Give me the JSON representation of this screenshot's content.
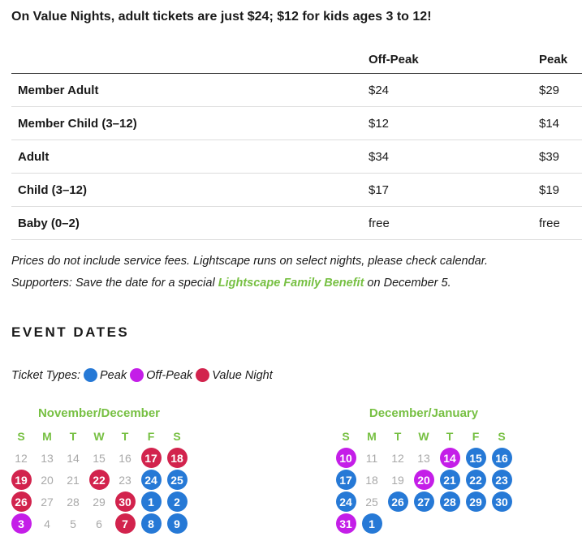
{
  "promo": "On Value Nights, adult tickets are just $24; $12 for kids ages 3 to 12!",
  "pricing": {
    "columns": [
      "",
      "Off-Peak",
      "Peak"
    ],
    "rows": [
      {
        "label": "Member Adult",
        "offpeak": "$24",
        "peak": "$29"
      },
      {
        "label": "Member Child (3–12)",
        "offpeak": "$12",
        "peak": "$14"
      },
      {
        "label": "Adult",
        "offpeak": "$34",
        "peak": "$39"
      },
      {
        "label": "Child (3–12)",
        "offpeak": "$17",
        "peak": "$19"
      },
      {
        "label": "Baby (0–2)",
        "offpeak": "free",
        "peak": "free"
      }
    ]
  },
  "notes": {
    "line1": "Prices do not include service fees. Lightscape runs on select nights, please check calendar.",
    "line2_prefix": "Supporters: Save the date for a special ",
    "line2_link": "Lightscape Family Benefit",
    "line2_suffix": " on December 5."
  },
  "event_dates_title": "EVENT DATES",
  "ticket_types": {
    "label": "Ticket Types:",
    "items": [
      {
        "name": "Peak",
        "color": "#2679d6"
      },
      {
        "name": "Off-Peak",
        "color": "#c41ee8"
      },
      {
        "name": "Value Night",
        "color": "#d2234d"
      }
    ]
  },
  "calendars": [
    {
      "title": "November/December",
      "weekdays": [
        "S",
        "M",
        "T",
        "W",
        "T",
        "F",
        "S"
      ],
      "weeks": [
        [
          {
            "d": "12",
            "t": "none"
          },
          {
            "d": "13",
            "t": "none"
          },
          {
            "d": "14",
            "t": "none"
          },
          {
            "d": "15",
            "t": "none"
          },
          {
            "d": "16",
            "t": "none"
          },
          {
            "d": "17",
            "t": "value"
          },
          {
            "d": "18",
            "t": "value"
          }
        ],
        [
          {
            "d": "19",
            "t": "value"
          },
          {
            "d": "20",
            "t": "none"
          },
          {
            "d": "21",
            "t": "none"
          },
          {
            "d": "22",
            "t": "value"
          },
          {
            "d": "23",
            "t": "none"
          },
          {
            "d": "24",
            "t": "peak"
          },
          {
            "d": "25",
            "t": "peak"
          }
        ],
        [
          {
            "d": "26",
            "t": "value"
          },
          {
            "d": "27",
            "t": "none"
          },
          {
            "d": "28",
            "t": "none"
          },
          {
            "d": "29",
            "t": "none"
          },
          {
            "d": "30",
            "t": "value"
          },
          {
            "d": "1",
            "t": "peak"
          },
          {
            "d": "2",
            "t": "peak"
          }
        ],
        [
          {
            "d": "3",
            "t": "offpeak"
          },
          {
            "d": "4",
            "t": "none"
          },
          {
            "d": "5",
            "t": "none"
          },
          {
            "d": "6",
            "t": "none"
          },
          {
            "d": "7",
            "t": "value"
          },
          {
            "d": "8",
            "t": "peak"
          },
          {
            "d": "9",
            "t": "peak"
          }
        ]
      ]
    },
    {
      "title": "December/January",
      "weekdays": [
        "S",
        "M",
        "T",
        "W",
        "T",
        "F",
        "S"
      ],
      "weeks": [
        [
          {
            "d": "10",
            "t": "offpeak"
          },
          {
            "d": "11",
            "t": "none"
          },
          {
            "d": "12",
            "t": "none"
          },
          {
            "d": "13",
            "t": "none"
          },
          {
            "d": "14",
            "t": "offpeak"
          },
          {
            "d": "15",
            "t": "peak"
          },
          {
            "d": "16",
            "t": "peak"
          }
        ],
        [
          {
            "d": "17",
            "t": "peak"
          },
          {
            "d": "18",
            "t": "none"
          },
          {
            "d": "19",
            "t": "none"
          },
          {
            "d": "20",
            "t": "offpeak"
          },
          {
            "d": "21",
            "t": "peak"
          },
          {
            "d": "22",
            "t": "peak"
          },
          {
            "d": "23",
            "t": "peak"
          }
        ],
        [
          {
            "d": "24",
            "t": "peak"
          },
          {
            "d": "25",
            "t": "none"
          },
          {
            "d": "26",
            "t": "peak"
          },
          {
            "d": "27",
            "t": "peak"
          },
          {
            "d": "28",
            "t": "peak"
          },
          {
            "d": "29",
            "t": "peak"
          },
          {
            "d": "30",
            "t": "peak"
          }
        ],
        [
          {
            "d": "31",
            "t": "offpeak"
          },
          {
            "d": "1",
            "t": "peak"
          }
        ]
      ]
    }
  ]
}
